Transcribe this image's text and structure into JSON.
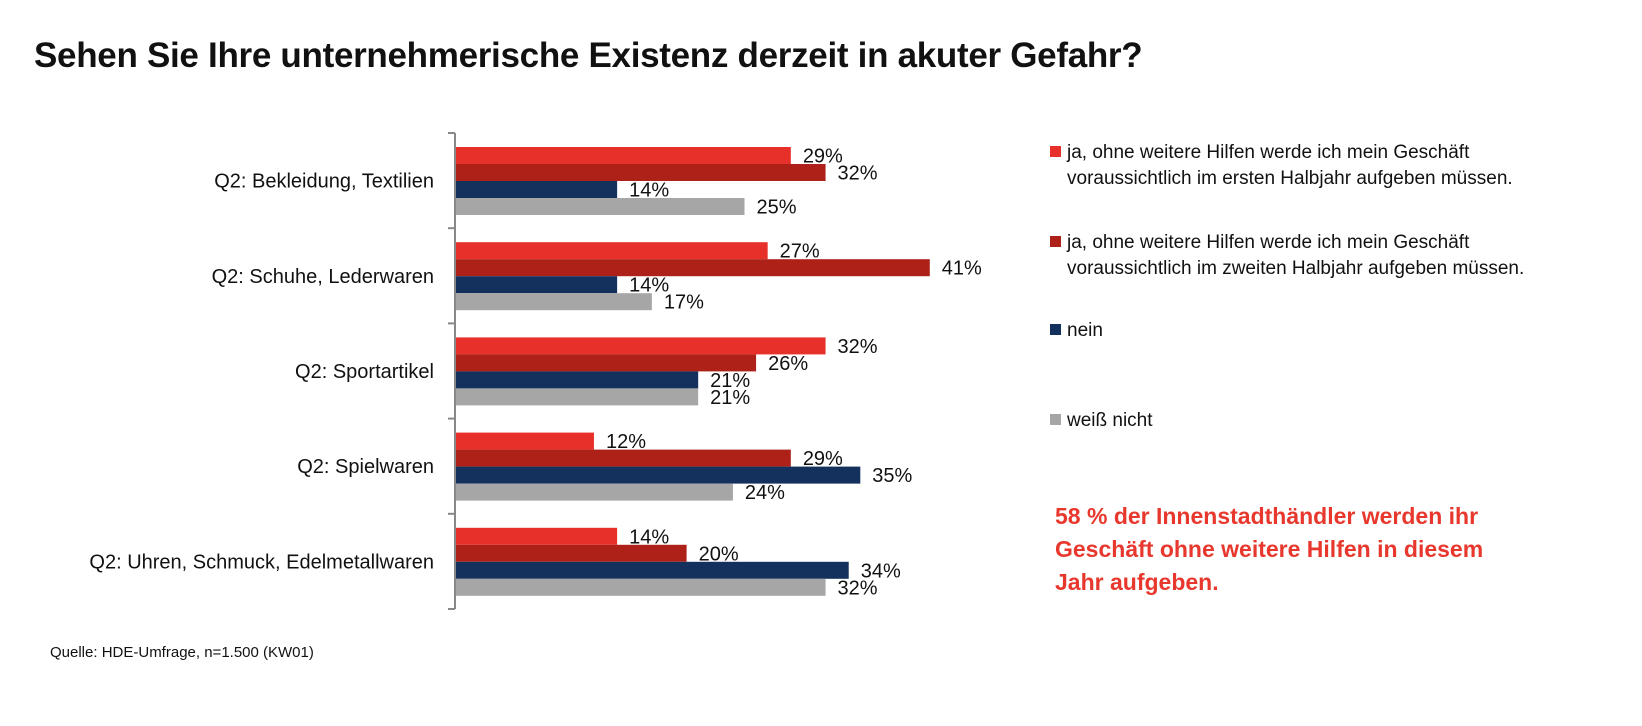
{
  "title": "Sehen Sie Ihre unternehmerische Existenz derzeit in akuter Gefahr?",
  "highlight_text": "58 % der Innenstadthändler werden ihr Geschäft ohne weitere Hilfen in diesem Jahr aufgeben.",
  "source": "Quelle: HDE-Umfrage, n=1.500 (KW01)",
  "chart_data": {
    "type": "bar",
    "orientation": "horizontal",
    "categories": [
      "Q2: Bekleidung, Textilien",
      "Q2: Schuhe, Lederwaren",
      "Q2: Sportartikel",
      "Q2: Spielwaren",
      "Q2: Uhren, Schmuck, Edelmetallwaren"
    ],
    "series": [
      {
        "name": "ja, ohne weitere Hilfen werde ich mein Geschäft voraussichtlich im ersten Halbjahr aufgeben müssen.",
        "color": "#e8302a",
        "values": [
          29,
          27,
          32,
          12,
          14
        ]
      },
      {
        "name": "ja, ohne weitere Hilfen werde ich mein Geschäft voraussichtlich im zweiten Halbjahr aufgeben müssen.",
        "color": "#ae2118",
        "values": [
          32,
          41,
          26,
          29,
          20
        ]
      },
      {
        "name": "nein",
        "color": "#14305c",
        "values": [
          14,
          14,
          21,
          35,
          34
        ]
      },
      {
        "name": "weiß nicht",
        "color": "#a6a6a6",
        "values": [
          25,
          17,
          21,
          24,
          32
        ]
      }
    ],
    "value_suffix": "%",
    "xlim": [
      0,
      45
    ],
    "grid": false,
    "legend_position": "right"
  }
}
